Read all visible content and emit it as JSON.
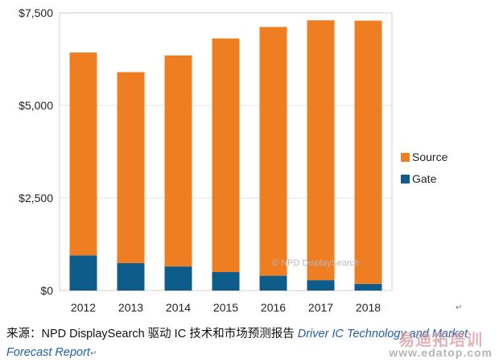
{
  "chart_data": {
    "type": "bar",
    "stacked": true,
    "categories": [
      "2012",
      "2013",
      "2014",
      "2015",
      "2016",
      "2017",
      "2018"
    ],
    "series": [
      {
        "name": "Gate",
        "color": "#0e5c8a",
        "values": [
          950,
          740,
          650,
          500,
          400,
          280,
          180
        ]
      },
      {
        "name": "Source",
        "color": "#ef7d22",
        "values": [
          5480,
          5160,
          5700,
          6310,
          6720,
          7020,
          7110
        ]
      }
    ],
    "ylim": [
      0,
      7500
    ],
    "yticks": [
      0,
      2500,
      5000,
      7500
    ],
    "ytick_labels": [
      "$0",
      "$2,500",
      "$5,000",
      "$7,500"
    ],
    "legend": [
      {
        "label": "Source",
        "color": "#ef7d22"
      },
      {
        "label": "Gate",
        "color": "#0e5c8a"
      }
    ],
    "legend_position": "right",
    "watermark": "© NPD DisplaySearch"
  },
  "caption": {
    "prefix": "来源：NPD DisplaySearch 驱动 IC 技术和市场预测报告",
    "italic": "Driver IC Technology and Market Forecast Report",
    "return_mark": "↵"
  },
  "site_watermark": {
    "cn": "易迪拓培训",
    "url": "www.edatop.com"
  },
  "stray_mark": "↵"
}
